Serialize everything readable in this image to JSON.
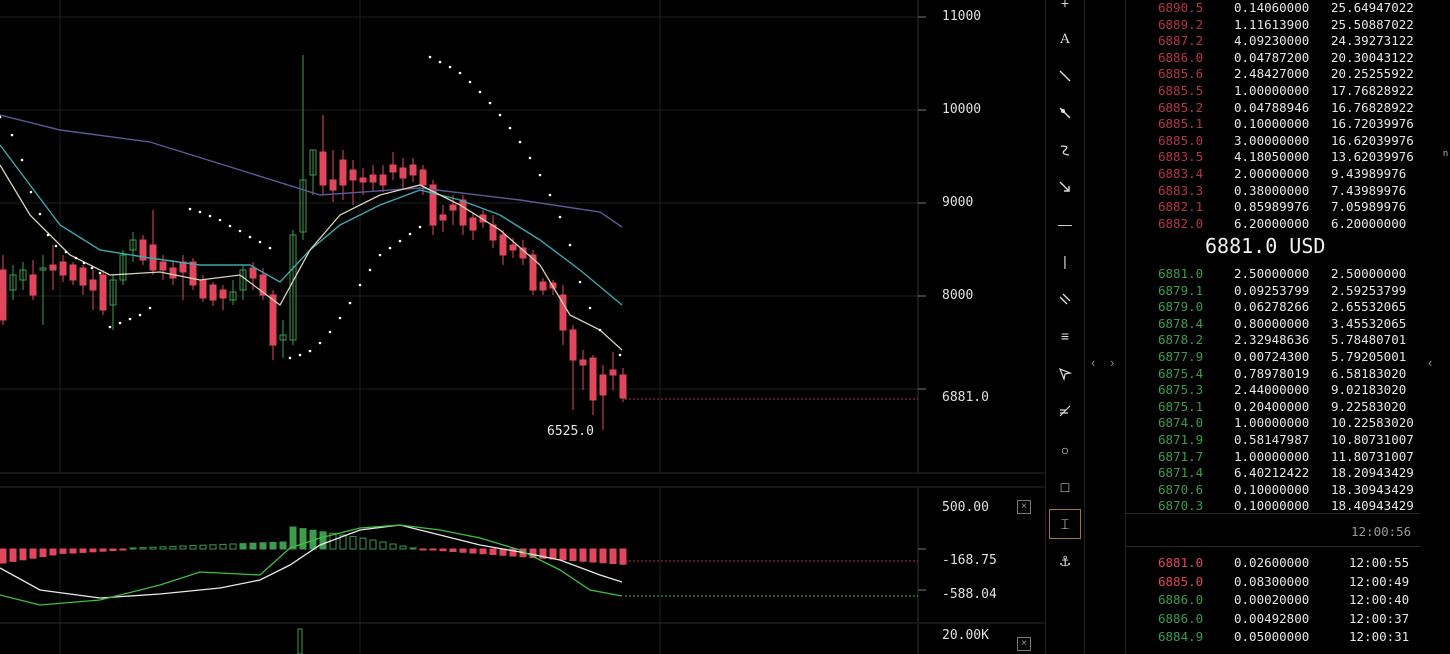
{
  "chart": {
    "price_axis": [
      "11000",
      "10000",
      "9000",
      "8000",
      "6881.0"
    ],
    "low_marker": "6525.0",
    "macd_axis": [
      "500.00",
      "-168.75",
      "-588.04"
    ],
    "volume_axis": [
      "20.00K"
    ],
    "close_glyph": "×",
    "colors": {
      "up": "#3b9c4e",
      "down": "#e0475d",
      "ma_slow": "#5a5a9a",
      "ma_mid": "#3aa8b0",
      "ma_fast": "#d8d4b8",
      "sar": "#ffffff"
    }
  },
  "toolbar": {
    "icons": [
      "plus-icon",
      "text-icon",
      "line-icon",
      "ray-icon",
      "curve-icon",
      "arrow-icon",
      "horizontal-line-icon",
      "vertical-line-icon",
      "parallel-lines-icon",
      "channel-icon",
      "cursor-icon",
      "fib-icon",
      "circle-icon",
      "rectangle-icon",
      "measure-icon",
      "pin-icon"
    ],
    "glyphs": {
      "plus": "+",
      "text": "A",
      "hline": "—",
      "vline": "|",
      "channel": "≡",
      "circle": "○",
      "rect": "□",
      "measure": "⌶",
      "pin": "⚓"
    }
  },
  "strip": {
    "left_arrow": "‹",
    "right_arrow": "›"
  },
  "orderbook": {
    "asks": [
      [
        "6890.5",
        "0.14060000",
        "25.64947022"
      ],
      [
        "6889.2",
        "1.11613900",
        "25.50887022"
      ],
      [
        "6887.2",
        "4.09230000",
        "24.39273122"
      ],
      [
        "6886.0",
        "0.04787200",
        "20.30043122"
      ],
      [
        "6885.6",
        "2.48427000",
        "20.25255922"
      ],
      [
        "6885.5",
        "1.00000000",
        "17.76828922"
      ],
      [
        "6885.2",
        "0.04788946",
        "16.76828922"
      ],
      [
        "6885.1",
        "0.10000000",
        "16.72039976"
      ],
      [
        "6885.0",
        "3.00000000",
        "16.62039976"
      ],
      [
        "6883.5",
        "4.18050000",
        "13.62039976"
      ],
      [
        "6883.4",
        "2.00000000",
        "9.43989976"
      ],
      [
        "6883.3",
        "0.38000000",
        "7.43989976"
      ],
      [
        "6882.1",
        "0.85989976",
        "7.05989976"
      ],
      [
        "6882.0",
        "6.20000000",
        "6.20000000"
      ]
    ],
    "mid_price": "6881.0 USD",
    "bids": [
      [
        "6881.0",
        "2.50000000",
        "2.50000000"
      ],
      [
        "6879.1",
        "0.09253799",
        "2.59253799"
      ],
      [
        "6879.0",
        "0.06278266",
        "2.65532065"
      ],
      [
        "6878.4",
        "0.80000000",
        "3.45532065"
      ],
      [
        "6878.2",
        "2.32948636",
        "5.78480701"
      ],
      [
        "6877.9",
        "0.00724300",
        "5.79205001"
      ],
      [
        "6875.4",
        "0.78978019",
        "6.58183020"
      ],
      [
        "6875.3",
        "2.44000000",
        "9.02183020"
      ],
      [
        "6875.1",
        "0.20400000",
        "9.22583020"
      ],
      [
        "6874.0",
        "1.00000000",
        "10.22583020"
      ],
      [
        "6871.9",
        "0.58147987",
        "10.80731007"
      ],
      [
        "6871.7",
        "1.00000000",
        "11.80731007"
      ],
      [
        "6871.4",
        "6.40212422",
        "18.20943429"
      ],
      [
        "6870.6",
        "0.10000000",
        "18.30943429"
      ],
      [
        "6870.3",
        "0.10000000",
        "18.40943429"
      ]
    ]
  },
  "trades": {
    "header_time": "12:00:56",
    "rows": [
      [
        "6881.0",
        "0.02600000",
        "12:00:55",
        "sell"
      ],
      [
        "6885.0",
        "0.08300000",
        "12:00:49",
        "sell"
      ],
      [
        "6886.0",
        "0.00020000",
        "12:00:40",
        "buy"
      ],
      [
        "6886.0",
        "0.00492800",
        "12:00:37",
        "buy"
      ],
      [
        "6884.9",
        "0.05000000",
        "12:00:31",
        "buy"
      ]
    ]
  },
  "edge_mark": "n"
}
